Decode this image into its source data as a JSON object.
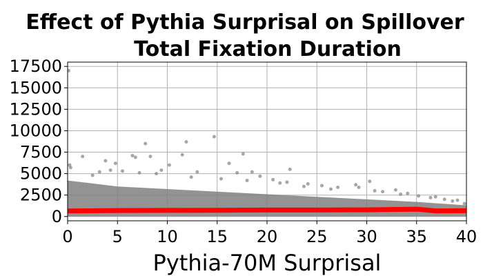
{
  "chart_data": {
    "type": "scatter",
    "title_lines": [
      "Effect of Pythia Surprisal on Spillover",
      "Total Fixation Duration"
    ],
    "xlabel": "Pythia-70M Surprisal",
    "ylabel": "",
    "xlim": [
      0,
      40
    ],
    "ylim": [
      -500,
      18000
    ],
    "xticks": [
      0,
      5,
      10,
      15,
      20,
      25,
      30,
      35,
      40
    ],
    "yticks": [
      0,
      2500,
      5000,
      7500,
      10000,
      12500,
      15000,
      17500
    ],
    "grid": true,
    "legend": "none",
    "colors": {
      "points": "#808080",
      "trend": "#ff0000",
      "grid": "#b0b0b0"
    },
    "series": [
      {
        "kind": "scatter",
        "points": [
          [
            0.1,
            17000
          ],
          [
            0.2,
            6000
          ],
          [
            0.3,
            5700
          ],
          [
            1.5,
            7000
          ],
          [
            3.8,
            6500
          ],
          [
            4.3,
            5400
          ],
          [
            4.8,
            6200
          ],
          [
            6.5,
            7100
          ],
          [
            6.8,
            6900
          ],
          [
            7.2,
            5100
          ],
          [
            7.8,
            8500
          ],
          [
            8.3,
            7000
          ],
          [
            9.4,
            5400
          ],
          [
            10.2,
            6000
          ],
          [
            11.5,
            7200
          ],
          [
            11.9,
            8700
          ],
          [
            13.0,
            5200
          ],
          [
            14.7,
            9300
          ],
          [
            16.2,
            6200
          ],
          [
            17.0,
            5100
          ],
          [
            17.6,
            7300
          ],
          [
            18.5,
            5200
          ],
          [
            19.3,
            4700
          ],
          [
            20.6,
            4300
          ],
          [
            22.3,
            5500
          ],
          [
            22.0,
            4000
          ],
          [
            24.1,
            3800
          ],
          [
            25.5,
            3600
          ],
          [
            27.1,
            3400
          ],
          [
            28.9,
            3700
          ],
          [
            29.2,
            3400
          ],
          [
            30.3,
            4100
          ],
          [
            30.8,
            3000
          ],
          [
            32.9,
            3100
          ],
          [
            33.4,
            2600
          ],
          [
            35.2,
            2400
          ],
          [
            36.4,
            2200
          ],
          [
            37.8,
            2000
          ],
          [
            39.1,
            1900
          ],
          [
            39.8,
            1500
          ],
          [
            2.5,
            4800
          ],
          [
            3.2,
            5200
          ],
          [
            5.5,
            5300
          ],
          [
            8.9,
            5000
          ],
          [
            12.4,
            4600
          ],
          [
            15.4,
            4400
          ],
          [
            18.0,
            4200
          ],
          [
            21.3,
            3900
          ],
          [
            23.7,
            3500
          ],
          [
            26.4,
            3200
          ],
          [
            31.6,
            2900
          ],
          [
            34.1,
            2700
          ],
          [
            36.9,
            2300
          ],
          [
            38.6,
            1800
          ]
        ]
      },
      {
        "kind": "line",
        "name": "",
        "x": [
          0,
          5,
          10,
          15,
          20,
          25,
          30,
          33,
          35,
          37,
          40
        ],
        "y": [
          650,
          700,
          720,
          730,
          760,
          760,
          780,
          830,
          860,
          650,
          680
        ]
      }
    ]
  }
}
